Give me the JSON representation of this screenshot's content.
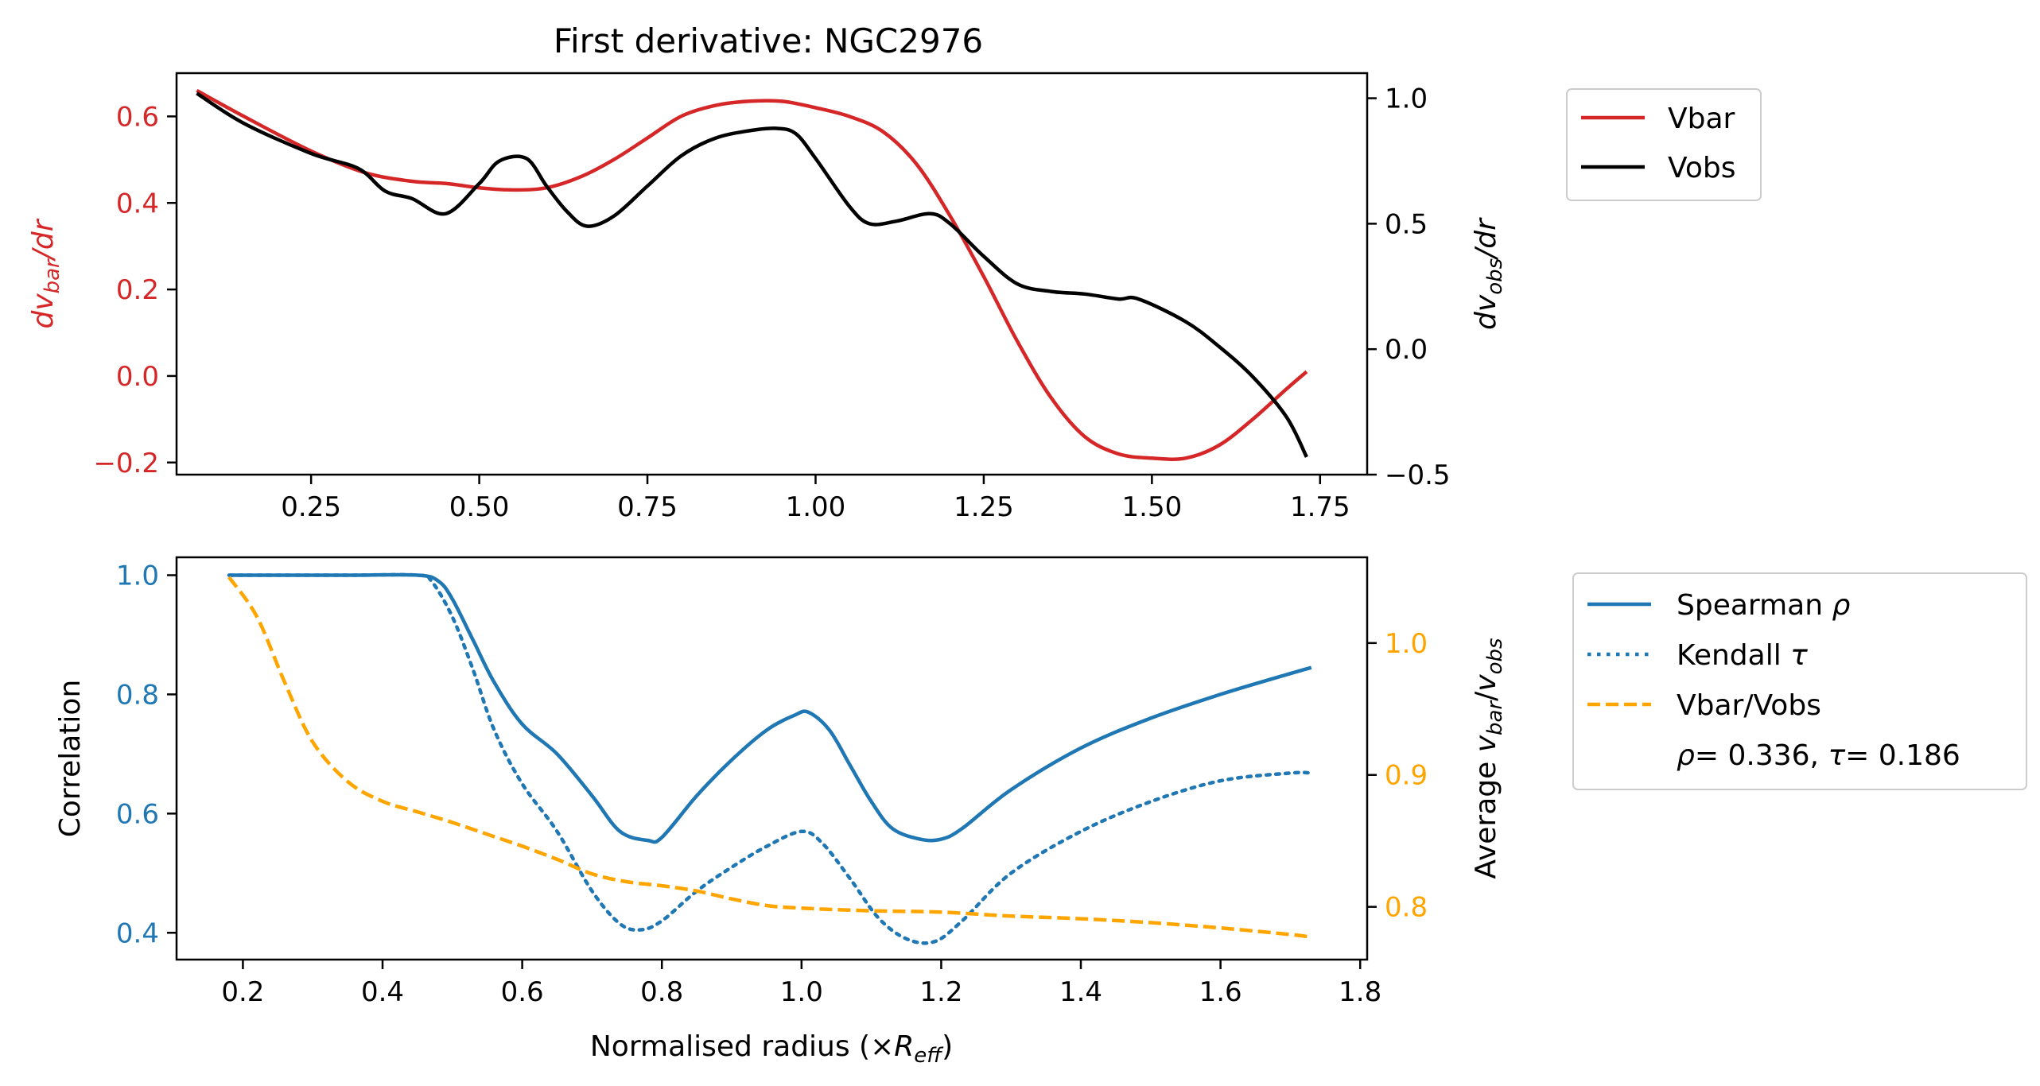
{
  "colors": {
    "vbar": "#d62728",
    "vobs": "#000000",
    "spearman": "#1f77b4",
    "kendall": "#1f77b4",
    "ratio": "#ffa500",
    "axis": "#000000"
  },
  "chart_data": [
    {
      "type": "line",
      "title": "First derivative: NGC2976",
      "ylabel_left": {
        "base": "dv",
        "sub": "bar",
        "suffix": "/dr"
      },
      "ylabel_right": {
        "base": "dv",
        "sub": "obs",
        "suffix": "/dr"
      },
      "xlim": [
        0.05,
        1.82
      ],
      "ylim_left": [
        -0.228,
        0.7
      ],
      "ylim_right": [
        -0.5,
        1.1
      ],
      "xticks": [
        0.25,
        0.5,
        0.75,
        1.0,
        1.25,
        1.5,
        1.75
      ],
      "xtick_labels": [
        "0.25",
        "0.50",
        "0.75",
        "1.00",
        "1.25",
        "1.50",
        "1.75"
      ],
      "yticks_left": [
        0.6,
        0.4,
        0.2,
        0.0,
        -0.2
      ],
      "ytick_labels_left": [
        "0.6",
        "0.4",
        "0.2",
        "0.0",
        "−0.2"
      ],
      "yticks_right": [
        1.0,
        0.5,
        0.0,
        -0.5
      ],
      "ytick_labels_right": [
        "1.0",
        "0.5",
        "0.0",
        "−0.5"
      ],
      "legend": {
        "placement": "outside-right-top",
        "entries": [
          "Vbar",
          "Vobs"
        ]
      },
      "series": [
        {
          "name": "Vbar",
          "axis": "left",
          "style": "solid",
          "x": [
            0.08,
            0.15,
            0.25,
            0.33,
            0.4,
            0.45,
            0.5,
            0.55,
            0.6,
            0.65,
            0.7,
            0.75,
            0.8,
            0.85,
            0.9,
            0.95,
            1.0,
            1.05,
            1.1,
            1.15,
            1.2,
            1.25,
            1.3,
            1.35,
            1.4,
            1.45,
            1.5,
            1.55,
            1.6,
            1.65,
            1.7,
            1.73
          ],
          "y": [
            0.66,
            0.6,
            0.52,
            0.47,
            0.45,
            0.445,
            0.435,
            0.43,
            0.435,
            0.46,
            0.5,
            0.55,
            0.6,
            0.625,
            0.635,
            0.635,
            0.62,
            0.6,
            0.565,
            0.49,
            0.37,
            0.23,
            0.08,
            -0.05,
            -0.14,
            -0.18,
            -0.19,
            -0.19,
            -0.16,
            -0.1,
            -0.03,
            0.01
          ]
        },
        {
          "name": "Vobs",
          "axis": "right",
          "style": "solid",
          "x": [
            0.08,
            0.15,
            0.25,
            0.32,
            0.36,
            0.4,
            0.45,
            0.5,
            0.53,
            0.57,
            0.6,
            0.63,
            0.66,
            0.7,
            0.75,
            0.8,
            0.85,
            0.9,
            0.94,
            0.97,
            1.0,
            1.05,
            1.08,
            1.12,
            1.17,
            1.2,
            1.25,
            1.3,
            1.35,
            1.4,
            1.45,
            1.48,
            1.55,
            1.6,
            1.65,
            1.7,
            1.73
          ],
          "y": [
            1.02,
            0.9,
            0.78,
            0.72,
            0.63,
            0.6,
            0.54,
            0.66,
            0.75,
            0.76,
            0.65,
            0.55,
            0.49,
            0.53,
            0.65,
            0.77,
            0.84,
            0.87,
            0.88,
            0.86,
            0.76,
            0.57,
            0.5,
            0.51,
            0.54,
            0.5,
            0.37,
            0.26,
            0.23,
            0.22,
            0.2,
            0.2,
            0.11,
            0.01,
            -0.11,
            -0.27,
            -0.43
          ]
        }
      ]
    },
    {
      "type": "line",
      "title": "",
      "xlabel": {
        "base": "Normalised radius (×",
        "sym": "R",
        "sub": "eff",
        "suffix": ")"
      },
      "ylabel_left": "Correlation",
      "ylabel_right": {
        "prefix": "Average ",
        "a": "v",
        "asub": "bar",
        "mid": "/",
        "b": "v",
        "bsub": "obs"
      },
      "xlim": [
        0.105,
        1.81
      ],
      "ylim_left": [
        0.355,
        1.03
      ],
      "ylim_right": [
        0.76,
        1.065
      ],
      "xticks": [
        0.2,
        0.4,
        0.6,
        0.8,
        1.0,
        1.2,
        1.4,
        1.6,
        1.8
      ],
      "xtick_labels": [
        "0.2",
        "0.4",
        "0.6",
        "0.8",
        "1.0",
        "1.2",
        "1.4",
        "1.6",
        "1.8"
      ],
      "yticks_left": [
        1.0,
        0.8,
        0.6,
        0.4
      ],
      "ytick_labels_left": [
        "1.0",
        "0.8",
        "0.6",
        "0.4"
      ],
      "yticks_right": [
        1.0,
        0.9,
        0.8
      ],
      "ytick_labels_right": [
        "1.0",
        "0.9",
        "0.8"
      ],
      "legend": {
        "placement": "outside-right-top",
        "entries": [
          {
            "label": "Spearman ",
            "sym": "ρ"
          },
          {
            "label": "Kendall ",
            "sym": "τ"
          },
          {
            "label": "Vbar/Vobs",
            "sym": ""
          }
        ],
        "stats": {
          "rho_sym": "ρ",
          "rho": "= 0.336,",
          "tau_sym": "τ",
          "tau": "= 0.186"
        }
      },
      "series": [
        {
          "name": "Spearman ρ",
          "axis": "left",
          "style": "solid",
          "x": [
            0.18,
            0.25,
            0.35,
            0.45,
            0.48,
            0.5,
            0.53,
            0.56,
            0.6,
            0.65,
            0.7,
            0.74,
            0.78,
            0.8,
            0.85,
            0.9,
            0.95,
            0.99,
            1.01,
            1.04,
            1.07,
            1.1,
            1.13,
            1.17,
            1.2,
            1.23,
            1.3,
            1.4,
            1.5,
            1.6,
            1.7,
            1.73
          ],
          "y": [
            1.0,
            1.0,
            1.0,
            1.0,
            0.99,
            0.96,
            0.89,
            0.82,
            0.75,
            0.7,
            0.63,
            0.57,
            0.555,
            0.56,
            0.63,
            0.69,
            0.74,
            0.765,
            0.77,
            0.74,
            0.68,
            0.62,
            0.575,
            0.557,
            0.557,
            0.575,
            0.64,
            0.71,
            0.76,
            0.8,
            0.835,
            0.845
          ]
        },
        {
          "name": "Kendall τ",
          "axis": "left",
          "style": "dotted",
          "x": [
            0.18,
            0.25,
            0.35,
            0.45,
            0.47,
            0.5,
            0.53,
            0.56,
            0.6,
            0.65,
            0.7,
            0.74,
            0.77,
            0.8,
            0.85,
            0.9,
            0.95,
            1.0,
            1.03,
            1.07,
            1.11,
            1.15,
            1.19,
            1.23,
            1.3,
            1.4,
            1.5,
            1.6,
            1.7,
            1.73
          ],
          "y": [
            1.0,
            1.0,
            1.0,
            1.0,
            0.99,
            0.93,
            0.84,
            0.74,
            0.65,
            0.57,
            0.47,
            0.415,
            0.405,
            0.42,
            0.47,
            0.51,
            0.545,
            0.57,
            0.55,
            0.49,
            0.425,
            0.39,
            0.385,
            0.42,
            0.5,
            0.57,
            0.62,
            0.655,
            0.668,
            0.668
          ]
        },
        {
          "name": "Vbar/Vobs",
          "axis": "right",
          "style": "dashed",
          "x": [
            0.18,
            0.22,
            0.26,
            0.3,
            0.35,
            0.4,
            0.45,
            0.5,
            0.55,
            0.6,
            0.65,
            0.7,
            0.75,
            0.8,
            0.85,
            0.9,
            0.95,
            1.0,
            1.1,
            1.2,
            1.3,
            1.4,
            1.5,
            1.6,
            1.7,
            1.73
          ],
          "y": [
            1.05,
            1.02,
            0.97,
            0.925,
            0.895,
            0.88,
            0.872,
            0.864,
            0.855,
            0.846,
            0.836,
            0.825,
            0.819,
            0.816,
            0.812,
            0.806,
            0.801,
            0.799,
            0.797,
            0.796,
            0.793,
            0.791,
            0.788,
            0.784,
            0.779,
            0.777
          ]
        }
      ]
    }
  ]
}
